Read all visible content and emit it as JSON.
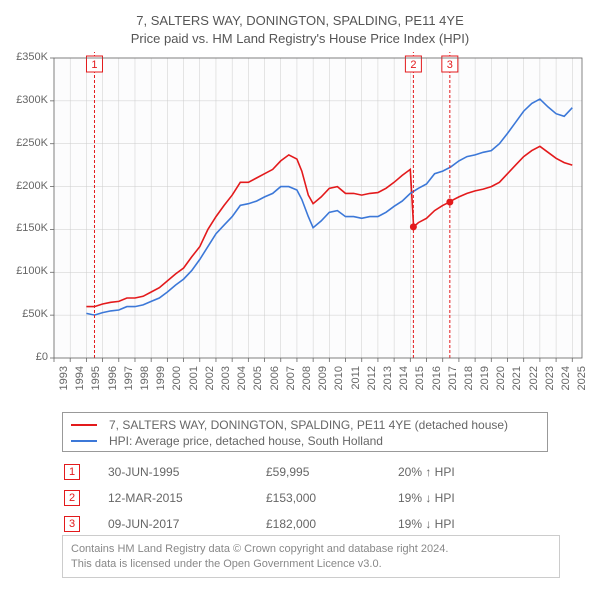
{
  "title_line1": "7, SALTERS WAY, DONINGTON, SPALDING, PE11 4YE",
  "title_line2": "Price paid vs. HM Land Registry's House Price Index (HPI)",
  "chart": {
    "type": "line",
    "background_color": "#ffffff",
    "plot_background_color": "#fcfcfd",
    "grid_color": "#cccccc",
    "axis_color": "#666666",
    "tick_color": "#666666",
    "font_size_axis": 11,
    "xlim": [
      1993,
      2025.6
    ],
    "ylim": [
      0,
      350000
    ],
    "xtick_step": 1,
    "xticks": [
      1993,
      1994,
      1995,
      1996,
      1997,
      1998,
      1999,
      2000,
      2001,
      2002,
      2003,
      2004,
      2005,
      2006,
      2007,
      2008,
      2009,
      2010,
      2011,
      2012,
      2013,
      2014,
      2015,
      2016,
      2017,
      2018,
      2019,
      2020,
      2021,
      2022,
      2023,
      2024,
      2025
    ],
    "ytick_step": 50000,
    "yticks": [
      0,
      50000,
      100000,
      150000,
      200000,
      250000,
      300000,
      350000
    ],
    "ytick_labels": [
      "£0",
      "£50K",
      "£100K",
      "£150K",
      "£200K",
      "£250K",
      "£300K",
      "£350K"
    ],
    "series": [
      {
        "key": "price_paid",
        "label": "7, SALTERS WAY, DONINGTON, SPALDING, PE11 4YE (detached house)",
        "color": "#e31a1c",
        "line_width": 1.6,
        "data": [
          [
            1995.0,
            60000
          ],
          [
            1995.5,
            59995
          ],
          [
            1996.0,
            63000
          ],
          [
            1996.5,
            65000
          ],
          [
            1997.0,
            66000
          ],
          [
            1997.5,
            70000
          ],
          [
            1998.0,
            70000
          ],
          [
            1998.5,
            72000
          ],
          [
            1999.0,
            77000
          ],
          [
            1999.5,
            82000
          ],
          [
            2000.0,
            90000
          ],
          [
            2000.5,
            98000
          ],
          [
            2001.0,
            105000
          ],
          [
            2001.5,
            118000
          ],
          [
            2002.0,
            130000
          ],
          [
            2002.5,
            150000
          ],
          [
            2003.0,
            165000
          ],
          [
            2003.5,
            178000
          ],
          [
            2004.0,
            190000
          ],
          [
            2004.5,
            205000
          ],
          [
            2005.0,
            205000
          ],
          [
            2005.5,
            210000
          ],
          [
            2006.0,
            215000
          ],
          [
            2006.5,
            220000
          ],
          [
            2007.0,
            230000
          ],
          [
            2007.5,
            237000
          ],
          [
            2008.0,
            232000
          ],
          [
            2008.3,
            218000
          ],
          [
            2008.7,
            190000
          ],
          [
            2009.0,
            180000
          ],
          [
            2009.5,
            188000
          ],
          [
            2010.0,
            198000
          ],
          [
            2010.5,
            200000
          ],
          [
            2011.0,
            192000
          ],
          [
            2011.5,
            192000
          ],
          [
            2012.0,
            190000
          ],
          [
            2012.5,
            192000
          ],
          [
            2013.0,
            193000
          ],
          [
            2013.5,
            198000
          ],
          [
            2014.0,
            205000
          ],
          [
            2014.5,
            213000
          ],
          [
            2015.0,
            220000
          ],
          [
            2015.2,
            153000
          ],
          [
            2015.5,
            158000
          ],
          [
            2016.0,
            163000
          ],
          [
            2016.5,
            172000
          ],
          [
            2017.0,
            178000
          ],
          [
            2017.44,
            182000
          ],
          [
            2017.5,
            183000
          ],
          [
            2018.0,
            188000
          ],
          [
            2018.5,
            192000
          ],
          [
            2019.0,
            195000
          ],
          [
            2019.5,
            197000
          ],
          [
            2020.0,
            200000
          ],
          [
            2020.5,
            205000
          ],
          [
            2021.0,
            215000
          ],
          [
            2021.5,
            225000
          ],
          [
            2022.0,
            235000
          ],
          [
            2022.5,
            242000
          ],
          [
            2023.0,
            247000
          ],
          [
            2023.5,
            240000
          ],
          [
            2024.0,
            233000
          ],
          [
            2024.5,
            228000
          ],
          [
            2025.0,
            225000
          ]
        ]
      },
      {
        "key": "hpi",
        "label": "HPI: Average price, detached house, South Holland",
        "color": "#3c78d8",
        "line_width": 1.6,
        "data": [
          [
            1995.0,
            52000
          ],
          [
            1995.5,
            50000
          ],
          [
            1996.0,
            53000
          ],
          [
            1996.5,
            55000
          ],
          [
            1997.0,
            56000
          ],
          [
            1997.5,
            60000
          ],
          [
            1998.0,
            60000
          ],
          [
            1998.5,
            62000
          ],
          [
            1999.0,
            66000
          ],
          [
            1999.5,
            70000
          ],
          [
            2000.0,
            77000
          ],
          [
            2000.5,
            85000
          ],
          [
            2001.0,
            92000
          ],
          [
            2001.5,
            102000
          ],
          [
            2002.0,
            115000
          ],
          [
            2002.5,
            130000
          ],
          [
            2003.0,
            145000
          ],
          [
            2003.5,
            155000
          ],
          [
            2004.0,
            165000
          ],
          [
            2004.5,
            178000
          ],
          [
            2005.0,
            180000
          ],
          [
            2005.5,
            183000
          ],
          [
            2006.0,
            188000
          ],
          [
            2006.5,
            192000
          ],
          [
            2007.0,
            200000
          ],
          [
            2007.5,
            200000
          ],
          [
            2008.0,
            196000
          ],
          [
            2008.3,
            185000
          ],
          [
            2008.7,
            165000
          ],
          [
            2009.0,
            152000
          ],
          [
            2009.5,
            160000
          ],
          [
            2010.0,
            170000
          ],
          [
            2010.5,
            172000
          ],
          [
            2011.0,
            165000
          ],
          [
            2011.5,
            165000
          ],
          [
            2012.0,
            163000
          ],
          [
            2012.5,
            165000
          ],
          [
            2013.0,
            165000
          ],
          [
            2013.5,
            170000
          ],
          [
            2014.0,
            177000
          ],
          [
            2014.5,
            183000
          ],
          [
            2015.0,
            192000
          ],
          [
            2015.5,
            198000
          ],
          [
            2016.0,
            203000
          ],
          [
            2016.5,
            215000
          ],
          [
            2017.0,
            218000
          ],
          [
            2017.5,
            223000
          ],
          [
            2018.0,
            230000
          ],
          [
            2018.5,
            235000
          ],
          [
            2019.0,
            237000
          ],
          [
            2019.5,
            240000
          ],
          [
            2020.0,
            242000
          ],
          [
            2020.5,
            250000
          ],
          [
            2021.0,
            262000
          ],
          [
            2021.5,
            275000
          ],
          [
            2022.0,
            288000
          ],
          [
            2022.5,
            297000
          ],
          [
            2023.0,
            302000
          ],
          [
            2023.5,
            293000
          ],
          [
            2024.0,
            285000
          ],
          [
            2024.5,
            282000
          ],
          [
            2025.0,
            292000
          ]
        ]
      }
    ],
    "markers": [
      {
        "n": "1",
        "x": 1995.5,
        "yTop": 350000,
        "color": "#e31a1c"
      },
      {
        "n": "2",
        "x": 2015.19,
        "yTop": 350000,
        "color": "#e31a1c"
      },
      {
        "n": "3",
        "x": 2017.44,
        "yTop": 350000,
        "color": "#e31a1c"
      }
    ],
    "marker_points": [
      {
        "x": 2015.19,
        "y": 153000,
        "color": "#e31a1c"
      },
      {
        "x": 2017.44,
        "y": 182000,
        "color": "#e31a1c"
      }
    ]
  },
  "legend": {
    "entries": [
      {
        "color": "#e31a1c",
        "label": "7, SALTERS WAY, DONINGTON, SPALDING, PE11 4YE (detached house)"
      },
      {
        "color": "#3c78d8",
        "label": "HPI: Average price, detached house, South Holland"
      }
    ]
  },
  "marker_rows": [
    {
      "n": "1",
      "color": "#e31a1c",
      "date": "30-JUN-1995",
      "price": "£59,995",
      "delta": "20% ↑ HPI"
    },
    {
      "n": "2",
      "color": "#e31a1c",
      "date": "12-MAR-2015",
      "price": "£153,000",
      "delta": "19% ↓ HPI"
    },
    {
      "n": "3",
      "color": "#e31a1c",
      "date": "09-JUN-2017",
      "price": "£182,000",
      "delta": "19% ↓ HPI"
    }
  ],
  "attribution": {
    "line1": "Contains HM Land Registry data © Crown copyright and database right 2024.",
    "line2": "This data is licensed under the Open Government Licence v3.0."
  }
}
